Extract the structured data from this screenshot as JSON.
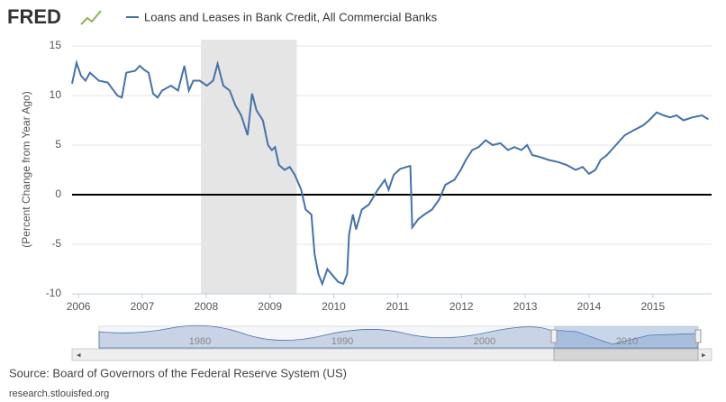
{
  "logo": "FRED",
  "chart_data": {
    "type": "line",
    "ylabel": "(Percent Change from Year Ago)",
    "x": [
      2005.9,
      2005.97,
      2006.04,
      2006.11,
      2006.18,
      2006.32,
      2006.46,
      2006.61,
      2006.68,
      2006.75,
      2006.89,
      2006.96,
      2007.03,
      2007.1,
      2007.17,
      2007.24,
      2007.31,
      2007.45,
      2007.56,
      2007.66,
      2007.73,
      2007.8,
      2007.9,
      2008.01,
      2008.11,
      2008.18,
      2008.27,
      2008.37,
      2008.46,
      2008.55,
      2008.65,
      2008.72,
      2008.79,
      2008.89,
      2008.97,
      2009.03,
      2009.08,
      2009.14,
      2009.23,
      2009.31,
      2009.39,
      2009.49,
      2009.56,
      2009.65,
      2009.7,
      2009.76,
      2009.82,
      2009.9,
      2009.99,
      2010.07,
      2010.15,
      2010.21,
      2010.24,
      2010.3,
      2010.35,
      2010.44,
      2010.55,
      2010.69,
      2010.8,
      2010.86,
      2010.94,
      2011.04,
      2011.14,
      2011.2,
      2011.23,
      2011.32,
      2011.42,
      2011.54,
      2011.65,
      2011.75,
      2011.89,
      2011.99,
      2012.07,
      2012.17,
      2012.27,
      2012.38,
      2012.49,
      2012.61,
      2012.73,
      2012.83,
      2012.94,
      2013.03,
      2013.11,
      2013.23,
      2013.37,
      2013.51,
      2013.65,
      2013.79,
      2013.9,
      2014.0,
      2014.1,
      2014.18,
      2014.28,
      2014.42,
      2014.56,
      2014.7,
      2014.85,
      2014.94,
      2015.06,
      2015.17,
      2015.27,
      2015.37,
      2015.48,
      2015.62,
      2015.77,
      2015.87
    ],
    "series": [
      {
        "name": "Loans and Leases in Bank Credit, All Commercial Banks",
        "color": "#4572a7",
        "values": [
          11.2,
          13.3,
          12,
          11.5,
          12.3,
          11.5,
          11.3,
          10,
          9.8,
          12.3,
          12.5,
          13,
          12.6,
          12.3,
          10.2,
          9.8,
          10.5,
          11,
          10.5,
          13,
          10.5,
          11.5,
          11.5,
          11,
          11.5,
          13.2,
          11,
          10.5,
          9,
          8,
          6,
          10.2,
          8.5,
          7.5,
          5,
          4.5,
          4.8,
          3,
          2.5,
          2.8,
          2,
          0.5,
          -1.5,
          -2,
          -6,
          -8,
          -9,
          -7.5,
          -8.2,
          -8.8,
          -9,
          -8,
          -4,
          -2,
          -3.5,
          -1.5,
          -1,
          0.5,
          1.5,
          0.5,
          2,
          2.6,
          2.8,
          2.9,
          -3.3,
          -2.5,
          -2,
          -1.5,
          -0.5,
          1,
          1.5,
          2.5,
          3.5,
          4.5,
          4.8,
          5.5,
          5,
          5.2,
          4.5,
          4.8,
          4.5,
          5,
          4,
          3.8,
          3.5,
          3.3,
          3,
          2.5,
          2.8,
          2.1,
          2.5,
          3.5,
          4,
          5,
          6,
          6.5,
          7,
          7.5,
          8.3,
          8,
          7.8,
          8,
          7.5,
          7.8,
          8,
          7.6
        ]
      }
    ],
    "xlim": [
      2005.9,
      2015.92
    ],
    "xticks": [
      2006,
      2007,
      2008,
      2009,
      2010,
      2011,
      2012,
      2013,
      2014,
      2015
    ],
    "ylim": [
      -10,
      15
    ],
    "yticks": [
      -10,
      -5,
      0,
      5,
      10,
      15
    ],
    "grid": true,
    "recession": [
      2007.92,
      2009.42
    ]
  },
  "navigator": {
    "labels": [
      "1980",
      "1990",
      "2000",
      "2010"
    ]
  },
  "source": "Source: Board of Governors of the Federal Reserve System (US)",
  "url": "research.stlouisfed.org"
}
